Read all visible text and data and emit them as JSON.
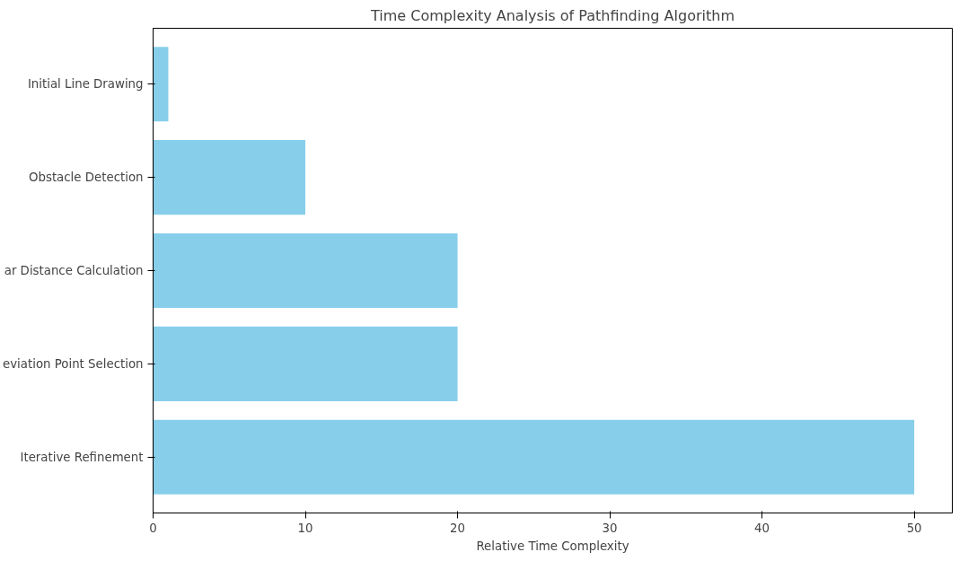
{
  "chart_data": {
    "type": "bar",
    "orientation": "horizontal",
    "title": "Time Complexity Analysis of Pathfinding Algorithm",
    "xlabel": "Relative Time Complexity",
    "categories": [
      "Initial Line Drawing",
      "Obstacle Detection",
      "ar Distance Calculation",
      "eviation Point Selection",
      "Iterative Refinement"
    ],
    "values": [
      1,
      10,
      20,
      20,
      50
    ],
    "color": "#87ceeb",
    "xlim": [
      0,
      52.5
    ],
    "xticks": [
      0,
      10,
      20,
      30,
      40,
      50
    ],
    "grid": false
  }
}
